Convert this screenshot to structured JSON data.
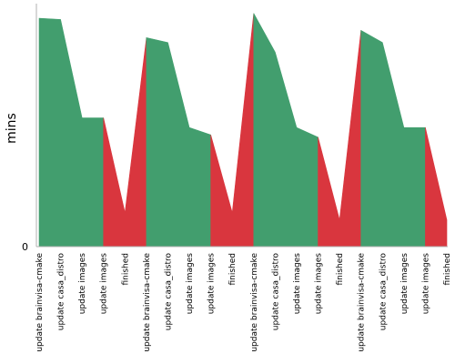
{
  "chart_data": {
    "type": "area",
    "ylabel": "mins",
    "xlabel": "",
    "title": "",
    "y_tick_labels": [
      "0"
    ],
    "ylim": [
      0,
      100
    ],
    "grid": false,
    "legend": "none",
    "colors": {
      "ok": "#429e6e",
      "finished": "#d9363e"
    },
    "categories": [
      "update brainvisa-cmake",
      "update casa_distro",
      "update images",
      "update images",
      "finished",
      "update brainvisa-cmake",
      "update casa_distro",
      "update images",
      "update images",
      "finished",
      "update brainvisa-cmake",
      "update casa_distro",
      "update images",
      "update images",
      "finished",
      "update brainvisa-cmake",
      "update casa_distro",
      "update images",
      "update images",
      "finished"
    ],
    "values": [
      94,
      93.5,
      53,
      53,
      14,
      86,
      84,
      49,
      46,
      14,
      96,
      80,
      49,
      45,
      11,
      89,
      84,
      49,
      49,
      11
    ],
    "series": [
      {
        "status": "ok",
        "from": 0,
        "to": 3
      },
      {
        "status": "finished",
        "from": 3,
        "to": 5
      },
      {
        "status": "ok",
        "from": 5,
        "to": 8
      },
      {
        "status": "finished",
        "from": 8,
        "to": 10
      },
      {
        "status": "ok",
        "from": 10,
        "to": 13
      },
      {
        "status": "finished",
        "from": 13,
        "to": 15
      },
      {
        "status": "ok",
        "from": 15,
        "to": 18
      },
      {
        "status": "finished",
        "from": 18,
        "to": 20
      }
    ]
  }
}
